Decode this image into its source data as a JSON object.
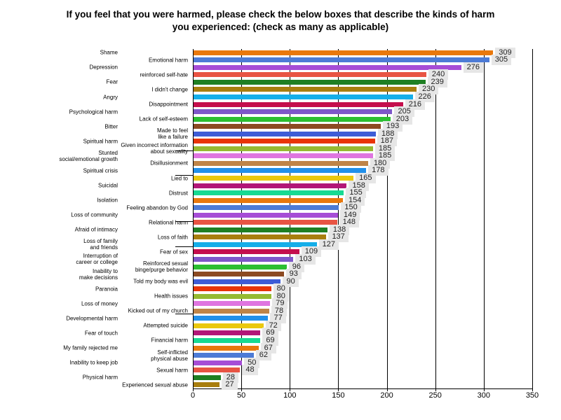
{
  "chart_data": {
    "type": "bar",
    "orientation": "horizontal",
    "title": "If you feel that you were harmed, please check the below boxes that describe the kinds of harm\nyou experienced: (check as many as applicable)",
    "xlabel": "",
    "ylabel": "",
    "xlim": [
      0,
      350
    ],
    "x_ticks": [
      0,
      50,
      100,
      150,
      200,
      250,
      300,
      350
    ],
    "grid": "vertical-black-gridlines-every-50",
    "legend": "none",
    "value_label_style": "number in light gray box at end of each bar",
    "categories": [
      "Shame",
      "Emotional harm",
      "Depression",
      "reinforced self-hate",
      "Fear",
      "I didn't change",
      "Angry",
      "Disappointment",
      "Psychological harm",
      "Lack of self-esteem",
      "Bitter",
      "Made to feel\nlike a failure",
      "Spiritual harm",
      "Given incorrect information\nabout sexuality",
      "Stunted\nsocial/emotional growth",
      "Disillusionment",
      "Spiritual crisis",
      "Lied to",
      "Suicidal",
      "Distrust",
      "Isolation",
      "Feeling abandon by God",
      "Loss of community",
      "Relational harm",
      "Afraid of intimacy",
      "Loss of faith",
      "Loss of family\nand friends",
      "Fear of sex",
      "Interruption of\ncareer or college",
      "Reinforced sexual\nbinge/purge behavior",
      "Inability to\nmake decisions",
      "Told my body was evil",
      "Paranoia",
      "Health issues",
      "Loss of money",
      "Kicked out of my church",
      "Developmental harm",
      "Attempted suicide",
      "Fear of touch",
      "Financial harm",
      "My family rejected me",
      "Self-inflicted\nphysical abuse",
      "Inability to keep job",
      "Sexual harm",
      "Physical harm",
      "Experienced sexual abuse"
    ],
    "values": [
      309,
      305,
      276,
      240,
      239,
      230,
      226,
      216,
      205,
      203,
      193,
      188,
      187,
      185,
      185,
      180,
      178,
      165,
      158,
      155,
      154,
      150,
      149,
      148,
      138,
      137,
      127,
      109,
      103,
      96,
      93,
      90,
      80,
      80,
      79,
      78,
      77,
      72,
      69,
      69,
      67,
      62,
      50,
      48,
      28,
      27
    ],
    "palette": [
      "#e9780c",
      "#4d7bd6",
      "#a64dd6",
      "#e85443",
      "#1f7f23",
      "#a87e0e",
      "#15aee9",
      "#c40e4c",
      "#7e57c9",
      "#2cbe31",
      "#8c4a22",
      "#3e5cd6",
      "#e93407",
      "#96ba31",
      "#df75e0",
      "#bf8447",
      "#2190ea",
      "#eac80e",
      "#b21677",
      "#16da92"
    ],
    "colors_meta": {
      "value_box_bg": "#e6e6e6",
      "axis_and_grid": "#000000",
      "text": "#000000"
    }
  }
}
